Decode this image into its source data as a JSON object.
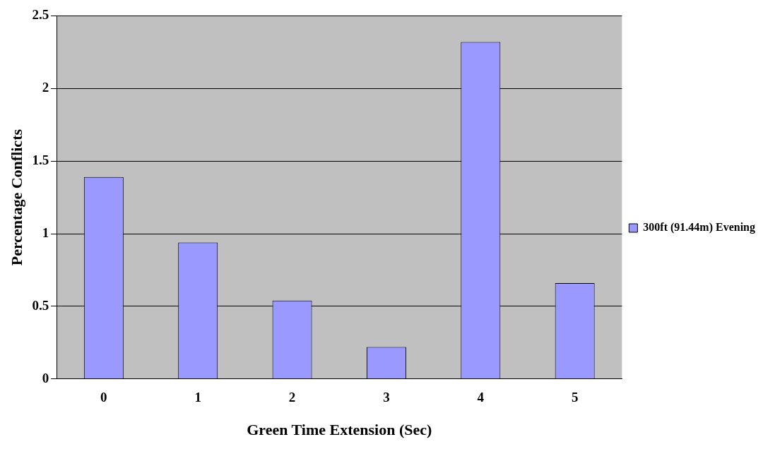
{
  "chart_data": {
    "type": "bar",
    "xlabel": "Green Time Extension (Sec)",
    "ylabel": "Percentage Conflicts",
    "categories": [
      "0",
      "1",
      "2",
      "3",
      "4",
      "5"
    ],
    "series": [
      {
        "name": "300ft (91.44m) Evening",
        "color": "#9999ff",
        "values": [
          1.39,
          0.94,
          0.54,
          0.22,
          2.32,
          0.66
        ]
      }
    ],
    "ylim": [
      0,
      2.5
    ],
    "yticks": [
      0,
      0.5,
      1,
      1.5,
      2,
      2.5
    ],
    "grid": "y",
    "legend": "right"
  }
}
